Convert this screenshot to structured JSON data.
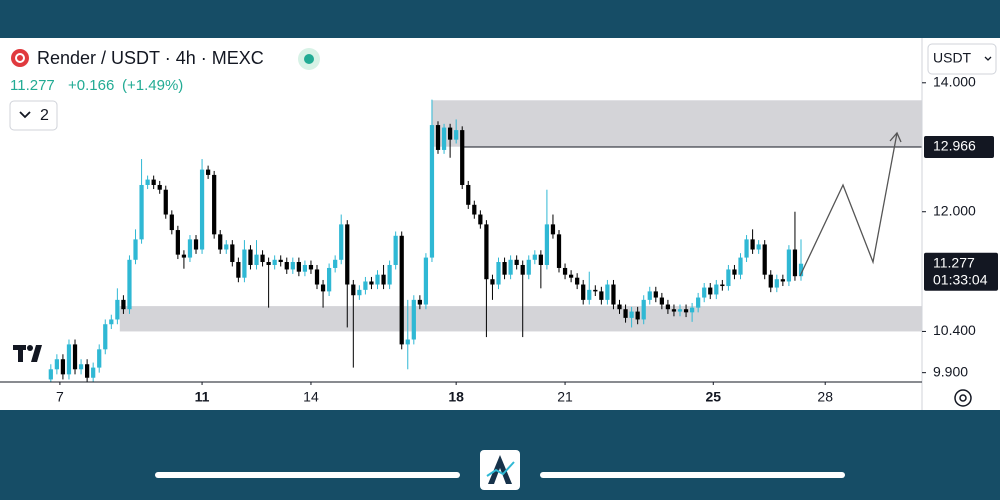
{
  "chart_data": {
    "type": "candlestick",
    "title": "Render / USDT · 4h · MEXC",
    "change": "+0.166",
    "change_percent": "(+1.49%)",
    "indicator_count": "2",
    "currency": "USDT",
    "countdown": "01:33:04",
    "log_scale": true,
    "up_color": "#2fb8d4",
    "down_color": "#000000",
    "ylim": [
      9.79,
      14.77
    ],
    "yticks": [
      {
        "value": 14,
        "label": "14.000"
      },
      {
        "value": 12,
        "label": "12.000"
      },
      {
        "value": 10.4,
        "label": "10.400"
      },
      {
        "value": 9.9,
        "label": "9.900"
      }
    ],
    "xlim": [
      -8.4,
      144
    ],
    "xticks": [
      {
        "value": 1.5,
        "label": "7"
      },
      {
        "value": 25,
        "label": "11"
      },
      {
        "value": 43,
        "label": "14"
      },
      {
        "value": 67,
        "label": "18"
      },
      {
        "value": 85,
        "label": "21"
      },
      {
        "value": 109.5,
        "label": "25"
      },
      {
        "value": 128,
        "label": "28"
      }
    ],
    "price_line": {
      "value": 12.966,
      "x0": 68
    },
    "zones": [
      {
        "x0": 63,
        "top": 13.71,
        "bottom": 12.97,
        "color": "#d2d2d6"
      },
      {
        "x0": 11.4,
        "top": 10.72,
        "bottom": 10.4,
        "color": "#d2d2d6"
      }
    ],
    "open": [
      9.82,
      9.94,
      10.06,
      9.88,
      10.24,
      9.94,
      10.0,
      9.84,
      9.96,
      10.18,
      10.49,
      10.55,
      10.8,
      10.68,
      11.33,
      11.61,
      12.39,
      12.47,
      12.39,
      12.32,
      11.96,
      11.74,
      11.4,
      11.36,
      11.61,
      11.47,
      12.62,
      12.54,
      11.68,
      11.47,
      11.54,
      11.3,
      11.09,
      11.47,
      11.26,
      11.4,
      11.3,
      11.26,
      11.33,
      11.3,
      11.2,
      11.3,
      11.17,
      11.26,
      11.2,
      11.0,
      10.91,
      11.22,
      11.33,
      11.82,
      11.0,
      10.86,
      10.93,
      11.04,
      11.0,
      11.13,
      11.0,
      11.26,
      11.66,
      10.24,
      10.3,
      10.8,
      10.74,
      11.36,
      13.31,
      12.92,
      13.27,
      13.08,
      13.23,
      12.39,
      12.1,
      11.96,
      11.82,
      11.07,
      11.0,
      11.3,
      11.13,
      11.33,
      11.26,
      11.13,
      11.33,
      11.4,
      11.26,
      11.82,
      11.68,
      11.22,
      11.13,
      11.09,
      11.0,
      10.8,
      10.93,
      10.91,
      10.8,
      11.0,
      10.74,
      10.68,
      10.57,
      10.65,
      10.55,
      10.8,
      10.91,
      10.83,
      10.74,
      10.68,
      10.65,
      10.68,
      10.64,
      10.7,
      10.83,
      10.96,
      10.87,
      11.0,
      10.98,
      11.2,
      11.13,
      11.36,
      11.61,
      11.47,
      11.54,
      11.13,
      10.96,
      11.07,
      11.04,
      11.47,
      11.11
    ],
    "high": [
      10.0,
      10.12,
      10.12,
      10.3,
      10.3,
      10.06,
      10.06,
      10.02,
      10.24,
      10.55,
      10.61,
      10.95,
      10.86,
      11.39,
      11.75,
      12.78,
      12.53,
      12.53,
      12.45,
      12.38,
      12.02,
      11.8,
      11.46,
      11.67,
      11.67,
      12.78,
      12.68,
      12.6,
      11.74,
      11.6,
      11.6,
      11.36,
      11.6,
      11.53,
      11.6,
      11.46,
      11.36,
      11.39,
      11.39,
      11.36,
      11.36,
      11.36,
      11.32,
      11.32,
      11.26,
      11.06,
      11.28,
      11.39,
      11.96,
      11.88,
      11.06,
      10.99,
      11.1,
      11.1,
      11.19,
      11.26,
      11.32,
      11.72,
      11.72,
      10.8,
      10.86,
      10.86,
      11.42,
      13.72,
      13.37,
      13.33,
      13.33,
      13.4,
      13.29,
      12.45,
      12.16,
      12.02,
      11.88,
      11.13,
      11.36,
      11.36,
      11.39,
      11.39,
      11.32,
      11.39,
      11.46,
      11.46,
      12.32,
      11.96,
      11.74,
      11.28,
      11.19,
      11.15,
      11.06,
      11.17,
      10.99,
      10.97,
      11.06,
      11.06,
      10.8,
      10.74,
      10.71,
      10.71,
      10.86,
      10.97,
      10.97,
      10.89,
      10.8,
      10.74,
      10.74,
      10.74,
      10.76,
      10.89,
      11.02,
      11.02,
      11.06,
      11.06,
      11.26,
      11.26,
      11.42,
      11.67,
      11.75,
      11.6,
      11.6,
      11.19,
      11.13,
      11.13,
      11.53,
      12.0,
      11.61
    ],
    "low": [
      9.76,
      9.88,
      9.82,
      9.82,
      9.88,
      9.88,
      9.78,
      9.78,
      9.9,
      10.12,
      10.43,
      10.49,
      10.62,
      10.62,
      11.27,
      11.55,
      12.33,
      12.33,
      12.26,
      11.9,
      11.68,
      11.34,
      11.21,
      11.3,
      11.41,
      11.41,
      12.48,
      11.62,
      11.41,
      11.41,
      11.24,
      11.03,
      11.03,
      11.2,
      11.2,
      11.24,
      10.7,
      11.2,
      11.24,
      11.14,
      11.14,
      11.11,
      11.11,
      11.14,
      10.94,
      10.7,
      10.85,
      11.16,
      11.27,
      10.45,
      9.96,
      10.8,
      10.87,
      10.94,
      10.94,
      10.94,
      10.94,
      11.2,
      10.18,
      9.94,
      10.24,
      10.68,
      10.68,
      11.3,
      12.86,
      12.86,
      12.8,
      13.02,
      12.33,
      12.04,
      11.9,
      11.76,
      10.33,
      10.8,
      10.94,
      11.07,
      11.07,
      11.2,
      10.33,
      11.07,
      11.27,
      10.95,
      11.2,
      11.62,
      11.16,
      11.07,
      11.03,
      10.94,
      10.74,
      10.74,
      10.85,
      10.74,
      10.74,
      10.68,
      10.62,
      10.51,
      10.45,
      10.49,
      10.49,
      10.74,
      10.77,
      10.68,
      10.62,
      10.59,
      10.59,
      10.58,
      10.52,
      10.64,
      10.77,
      10.81,
      10.81,
      10.92,
      10.92,
      11.07,
      11.07,
      11.3,
      11.41,
      11.41,
      11.07,
      10.9,
      10.9,
      10.98,
      10.98,
      11.05,
      11.05
    ],
    "close": [
      9.94,
      10.06,
      9.88,
      10.24,
      9.94,
      10.0,
      9.84,
      9.96,
      10.18,
      10.49,
      10.55,
      10.8,
      10.68,
      11.33,
      11.61,
      12.39,
      12.47,
      12.39,
      12.32,
      11.96,
      11.74,
      11.4,
      11.36,
      11.61,
      11.47,
      12.62,
      12.54,
      11.68,
      11.47,
      11.54,
      11.3,
      11.09,
      11.47,
      11.26,
      11.4,
      11.3,
      11.26,
      11.33,
      11.3,
      11.2,
      11.3,
      11.17,
      11.26,
      11.2,
      11.0,
      10.91,
      11.22,
      11.33,
      11.82,
      11.0,
      10.86,
      10.93,
      11.04,
      11.0,
      11.13,
      11.0,
      11.26,
      11.66,
      10.24,
      10.3,
      10.8,
      10.74,
      11.36,
      13.31,
      12.92,
      13.27,
      13.08,
      13.23,
      12.39,
      12.1,
      11.96,
      11.82,
      11.07,
      11.0,
      11.3,
      11.13,
      11.33,
      11.26,
      11.13,
      11.33,
      11.4,
      11.26,
      11.82,
      11.68,
      11.22,
      11.13,
      11.09,
      11.0,
      10.8,
      10.93,
      10.91,
      10.8,
      11.0,
      10.74,
      10.68,
      10.57,
      10.65,
      10.55,
      10.8,
      10.91,
      10.83,
      10.74,
      10.68,
      10.65,
      10.68,
      10.64,
      10.7,
      10.83,
      10.96,
      10.87,
      11.0,
      10.98,
      11.2,
      11.13,
      11.36,
      11.61,
      11.47,
      11.54,
      11.13,
      10.96,
      11.07,
      11.04,
      11.47,
      11.11,
      11.277
    ]
  }
}
